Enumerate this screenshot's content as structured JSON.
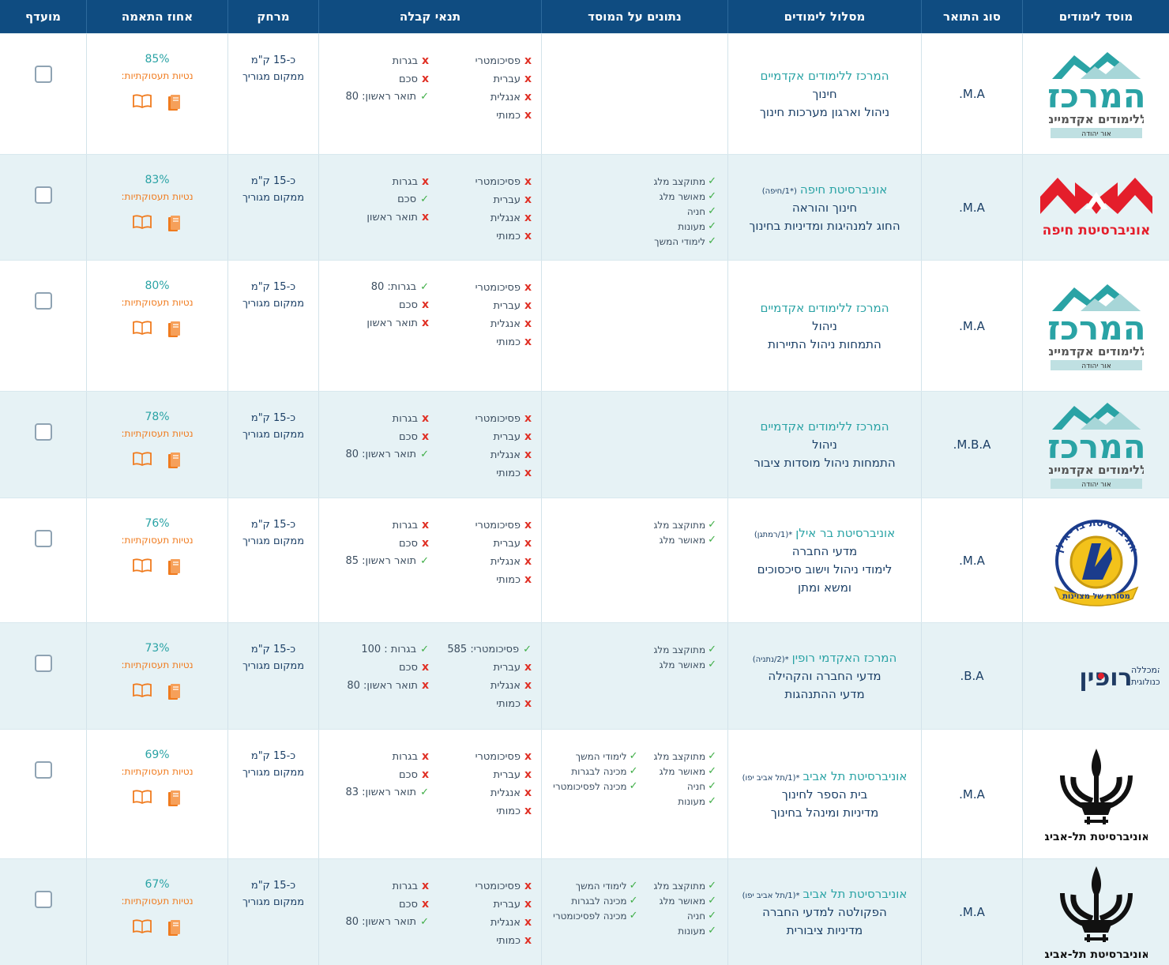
{
  "header": {
    "institution": "מוסד לימודים",
    "degree": "סוג התואר",
    "track": "מסלול לימודים",
    "facts": "נתונים על המוסד",
    "requirements": "תנאי קבלה",
    "distance": "מרחק",
    "match": "אחוז התאמה",
    "favorite": "מועדף"
  },
  "colors": {
    "header_bg": "#0f4c81",
    "row_shade": "#e6f2f5",
    "accent_teal": "#2aa3a5",
    "accent_orange": "#f07b1e",
    "check_green": "#3fae47",
    "cross_red": "#e03126"
  },
  "rows": [
    {
      "logo": {
        "type": "merkaz",
        "name": "המרכז",
        "sub": "ללימודים אקדמיים",
        "tag": "אור יהודה"
      },
      "degree": "M.A.",
      "institution": "המרכז ללימודים אקדמיים",
      "note": "",
      "lines": [
        "חינוך",
        "ניהול וארגון מערכות חינוך"
      ],
      "facts_a": [],
      "facts_b": [],
      "req_a": [
        {
          "ok": false,
          "text": "פסיכומטרי"
        },
        {
          "ok": false,
          "text": "עברית"
        },
        {
          "ok": false,
          "text": "אנגלית"
        },
        {
          "ok": false,
          "text": "כמותי"
        }
      ],
      "req_b": [
        {
          "ok": false,
          "text": "בגרות"
        },
        {
          "ok": false,
          "text": "סכם"
        },
        {
          "ok": true,
          "text": "תואר ראשון: 80"
        }
      ],
      "distance": "כ-15 ק\"מ",
      "distance_note": "ממקום מגוריך",
      "match": "85%",
      "employment": "נטיות תעסוקתיות:"
    },
    {
      "logo": {
        "type": "haifa",
        "name": "אוניברסיטת חיפה"
      },
      "degree": "M.A.",
      "institution": "אוניברסיטת חיפה",
      "note": "(*1/חיפה)",
      "lines": [
        "חינוך והוראה",
        "החוג למנהיגות ומדיניות בחינוך"
      ],
      "facts_a": [
        "מתוקצב מלג",
        "מאושר מלג",
        "חניה",
        "מעונות",
        "לימודי המשך"
      ],
      "facts_b": [],
      "req_a": [
        {
          "ok": false,
          "text": "פסיכומטרי"
        },
        {
          "ok": false,
          "text": "עברית"
        },
        {
          "ok": false,
          "text": "אנגלית"
        },
        {
          "ok": false,
          "text": "כמותי"
        }
      ],
      "req_b": [
        {
          "ok": false,
          "text": "בגרות"
        },
        {
          "ok": true,
          "text": "סכם"
        },
        {
          "ok": false,
          "text": "תואר ראשון"
        }
      ],
      "distance": "כ-15 ק\"מ",
      "distance_note": "ממקום מגוריך",
      "match": "83%",
      "employment": "נטיות תעסוקתיות:"
    },
    {
      "logo": {
        "type": "merkaz",
        "name": "המרכז",
        "sub": "ללימודים אקדמיים",
        "tag": "אור יהודה"
      },
      "degree": "M.A.",
      "institution": "המרכז ללימודים אקדמיים",
      "note": "",
      "lines": [
        "ניהול",
        "התמחות ניהול התיירות"
      ],
      "facts_a": [],
      "facts_b": [],
      "req_a": [
        {
          "ok": false,
          "text": "פסיכומטרי"
        },
        {
          "ok": false,
          "text": "עברית"
        },
        {
          "ok": false,
          "text": "אנגלית"
        },
        {
          "ok": false,
          "text": "כמותי"
        }
      ],
      "req_b": [
        {
          "ok": true,
          "text": "בגרות: 80"
        },
        {
          "ok": false,
          "text": "סכם"
        },
        {
          "ok": false,
          "text": "תואר ראשון"
        }
      ],
      "distance": "כ-15 ק\"מ",
      "distance_note": "ממקום מגוריך",
      "match": "80%",
      "employment": "נטיות תעסוקתיות:"
    },
    {
      "logo": {
        "type": "merkaz",
        "name": "המרכז",
        "sub": "ללימודים אקדמיים",
        "tag": "אור יהודה"
      },
      "degree": "M.B.A.",
      "institution": "המרכז ללימודים אקדמיים",
      "note": "",
      "lines": [
        "ניהול",
        "התמחות ניהול מוסדות ציבור"
      ],
      "facts_a": [],
      "facts_b": [],
      "req_a": [
        {
          "ok": false,
          "text": "פסיכומטרי"
        },
        {
          "ok": false,
          "text": "עברית"
        },
        {
          "ok": false,
          "text": "אנגלית"
        },
        {
          "ok": false,
          "text": "כמותי"
        }
      ],
      "req_b": [
        {
          "ok": false,
          "text": "בגרות"
        },
        {
          "ok": false,
          "text": "סכם"
        },
        {
          "ok": true,
          "text": "תואר ראשון: 80"
        }
      ],
      "distance": "כ-15 ק\"מ",
      "distance_note": "ממקום מגוריך",
      "match": "78%",
      "employment": "נטיות תעסוקתיות:"
    },
    {
      "logo": {
        "type": "barilan",
        "name": "אוניברסיטת בר-אילן",
        "motto": "מסורת של מצוינות"
      },
      "degree": "M.A.",
      "institution": "אוניברסיטת בר אילן",
      "note": "*(1/רמתגן)",
      "lines": [
        "מדעי החברה",
        "לימודי ניהול וישוב סיכסוכים",
        "ומשא ומתן"
      ],
      "facts_a": [
        "מתוקצב מלג",
        "מאושר מלג"
      ],
      "facts_b": [],
      "req_a": [
        {
          "ok": false,
          "text": "פסיכומטרי"
        },
        {
          "ok": false,
          "text": "עברית"
        },
        {
          "ok": false,
          "text": "אנגלית"
        },
        {
          "ok": false,
          "text": "כמותי"
        }
      ],
      "req_b": [
        {
          "ok": false,
          "text": "בגרות"
        },
        {
          "ok": false,
          "text": "סכם"
        },
        {
          "ok": true,
          "text": "תואר ראשון: 85"
        }
      ],
      "distance": "כ-15 ק\"מ",
      "distance_note": "ממקום מגוריך",
      "match": "76%",
      "employment": "נטיות תעסוקתיות:"
    },
    {
      "logo": {
        "type": "ruppin",
        "name": "רופין",
        "sub1": "המכללה",
        "sub2": "הטכנולוגית"
      },
      "degree": "B.A.",
      "institution": "המרכז האקדמי רופין",
      "note": "*(2/נתניה)",
      "lines": [
        "מדעי החברה והקהילה",
        "מדעי ההתנהגות"
      ],
      "facts_a": [
        "מתוקצב מלג",
        "מאושר מלג"
      ],
      "facts_b": [],
      "req_a": [
        {
          "ok": true,
          "text": "פסיכומטרי: 585"
        },
        {
          "ok": false,
          "text": "עברית"
        },
        {
          "ok": false,
          "text": "אנגלית"
        },
        {
          "ok": false,
          "text": "כמותי"
        }
      ],
      "req_b": [
        {
          "ok": true,
          "text": "בגרות : 100"
        },
        {
          "ok": false,
          "text": "סכם"
        },
        {
          "ok": false,
          "text": "תואר ראשון: 80"
        }
      ],
      "distance": "כ-15 ק\"מ",
      "distance_note": "ממקום מגוריך",
      "match": "73%",
      "employment": "נטיות תעסוקתיות:"
    },
    {
      "logo": {
        "type": "tau",
        "name": "אוניברסיטת תל-אביב"
      },
      "degree": "M.A.",
      "institution": "אוניברסיטת תל אביב",
      "note": "*(1/תל אביב יפו)",
      "lines": [
        "בית הספר לחינוך",
        "מדיניות ומינהל בחינוך"
      ],
      "facts_a": [
        "מתוקצב מלג",
        "מאושר מלג",
        "חניה",
        "מעונות"
      ],
      "facts_b": [
        "לימודי המשך",
        "מכינה לבגרות",
        "מכינה לפסיכומטרי"
      ],
      "req_a": [
        {
          "ok": false,
          "text": "פסיכומטרי"
        },
        {
          "ok": false,
          "text": "עברית"
        },
        {
          "ok": false,
          "text": "אנגלית"
        },
        {
          "ok": false,
          "text": "כמותי"
        }
      ],
      "req_b": [
        {
          "ok": false,
          "text": "בגרות"
        },
        {
          "ok": false,
          "text": "סכם"
        },
        {
          "ok": true,
          "text": "תואר ראשון: 83"
        }
      ],
      "distance": "כ-15 ק\"מ",
      "distance_note": "ממקום מגוריך",
      "match": "69%",
      "employment": "נטיות תעסוקתיות:"
    },
    {
      "logo": {
        "type": "tau",
        "name": "אוניברסיטת תל-אביב"
      },
      "degree": "M.A.",
      "institution": "אוניברסיטת תל אביב",
      "note": "*(1/תל אביב יפו)",
      "lines": [
        "הפקולטה למדעי החברה",
        "מדיניות ציבורית"
      ],
      "facts_a": [
        "מתוקצב מלג",
        "מאושר מלג",
        "חניה",
        "מעונות"
      ],
      "facts_b": [
        "לימודי המשך",
        "מכינה לבגרות",
        "מכינה לפסיכומטרי"
      ],
      "req_a": [
        {
          "ok": false,
          "text": "פסיכומטרי"
        },
        {
          "ok": false,
          "text": "עברית"
        },
        {
          "ok": false,
          "text": "אנגלית"
        },
        {
          "ok": false,
          "text": "כמותי"
        }
      ],
      "req_b": [
        {
          "ok": false,
          "text": "בגרות"
        },
        {
          "ok": false,
          "text": "סכם"
        },
        {
          "ok": true,
          "text": "תואר ראשון: 80"
        }
      ],
      "distance": "כ-15 ק\"מ",
      "distance_note": "ממקום מגוריך",
      "match": "67%",
      "employment": "נטיות תעסוקתיות:"
    }
  ]
}
